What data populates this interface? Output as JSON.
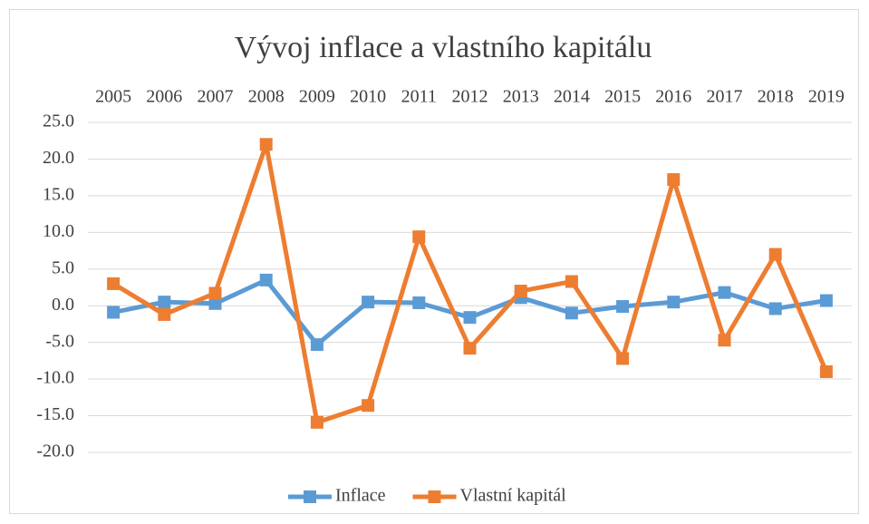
{
  "chart_data": {
    "type": "line",
    "title": "Vývoj inflace a vlastního kapitálu",
    "categories": [
      "2005",
      "2006",
      "2007",
      "2008",
      "2009",
      "2010",
      "2011",
      "2012",
      "2013",
      "2014",
      "2015",
      "2016",
      "2017",
      "2018",
      "2019"
    ],
    "series": [
      {
        "name": "Inflace",
        "color": "#5b9bd5",
        "values": [
          -0.9,
          0.5,
          0.3,
          3.5,
          -5.3,
          0.5,
          0.4,
          -1.6,
          1.1,
          -1.0,
          -0.1,
          0.5,
          1.8,
          -0.4,
          0.7
        ]
      },
      {
        "name": "Vlastní kapitál",
        "color": "#ed7d31",
        "values": [
          3.0,
          -1.2,
          1.7,
          22.0,
          -15.9,
          -13.6,
          9.4,
          -5.8,
          2.0,
          3.3,
          -7.2,
          17.2,
          -4.7,
          7.0,
          -9.0
        ]
      }
    ],
    "ylim": [
      -20,
      25
    ],
    "yticks": [
      {
        "value": -20,
        "label": "-20.0"
      },
      {
        "value": -15,
        "label": "-15.0"
      },
      {
        "value": -10,
        "label": "-10.0"
      },
      {
        "value": -5,
        "label": "-5.0"
      },
      {
        "value": 0,
        "label": "0.0"
      },
      {
        "value": 5,
        "label": "5.0"
      },
      {
        "value": 10,
        "label": "10.0"
      },
      {
        "value": 15,
        "label": "15.0"
      },
      {
        "value": 20,
        "label": "20.0"
      },
      {
        "value": 25,
        "label": "25.0"
      }
    ],
    "grid": true,
    "legend": "bottom"
  }
}
